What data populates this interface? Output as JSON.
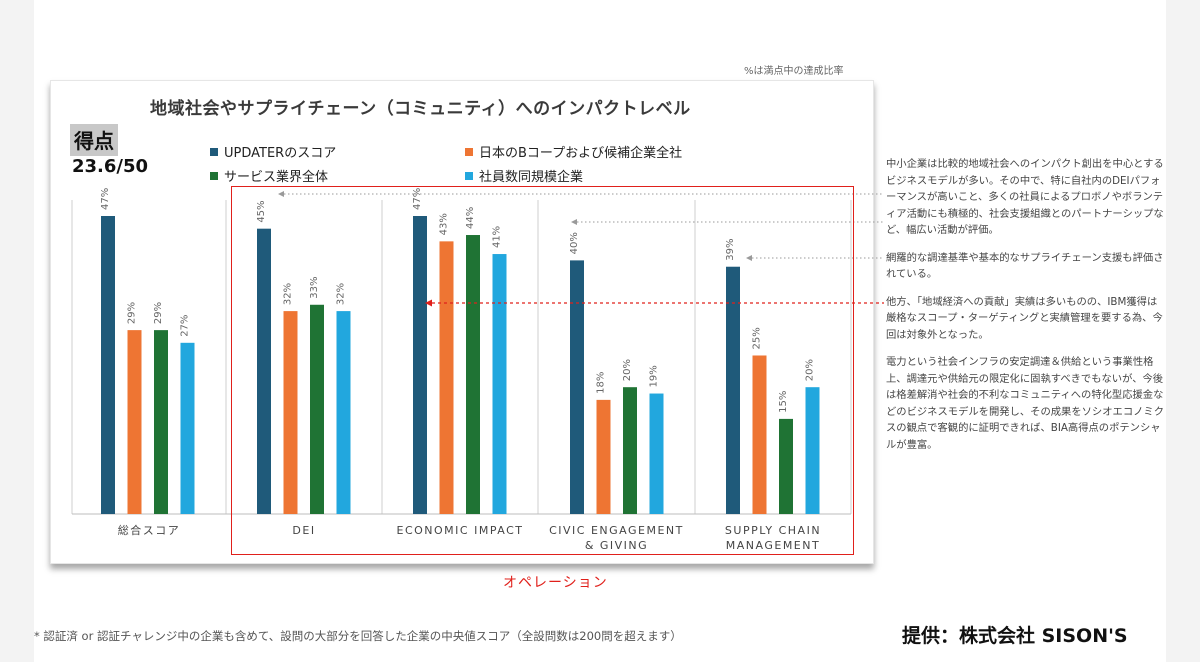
{
  "top_note": "%は満点中の達成比率",
  "score": {
    "label": "得点",
    "value": "23.6/50"
  },
  "highlight_label": "オペレーション",
  "colors": {
    "UPDATER": "#1f5a7a",
    "bcorp": "#ee7533",
    "service": "#1f7334",
    "size": "#22a7de",
    "highlight": "#e0201b"
  },
  "chart_data": {
    "type": "bar",
    "title": "地域社会やサプライチェーン（コミュニティ）へのインパクトレベル",
    "categories": [
      "総合スコア",
      "DEI",
      "ECONOMIC IMPACT",
      "CIVIC ENGAGEMENT\n& GIVING",
      "SUPPLY CHAIN\nMANAGEMENT"
    ],
    "series": [
      {
        "name": "UPDATERのスコア",
        "color_key": "UPDATER",
        "values": [
          47,
          45,
          47,
          40,
          39
        ]
      },
      {
        "name": "日本のBコープおよび候補企業全社",
        "color_key": "bcorp",
        "values": [
          29,
          32,
          43,
          18,
          25
        ]
      },
      {
        "name": "サービス業界全体",
        "color_key": "service",
        "values": [
          29,
          33,
          44,
          20,
          15
        ]
      },
      {
        "name": "社員数同規模企業",
        "color_key": "size",
        "values": [
          27,
          32,
          41,
          19,
          20
        ]
      }
    ],
    "ylim": [
      0,
      50
    ],
    "value_suffix": "%",
    "grid": false,
    "legend_position": "top"
  },
  "notes": [
    "中小企業は比較的地域社会へのインパクト創出を中心とするビジネスモデルが多い。その中で、特に自社内のDEIパフォーマンスが高いこと、多くの社員によるプロボノやボランティア活動にも積極的、社会支援組織とのパートナーシップなど、幅広い活動が評価。",
    "網羅的な調達基準や基本的なサプライチェーン支援も評価されている。",
    "他方、「地域経済への貢献」実績は多いものの、IBM獲得は厳格なスコープ・ターゲティングと実績管理を要する為、今回は対象外となった。",
    "電力という社会インフラの安定調達＆供給という事業性格上、調達元や供給元の限定化に固執すべきでもないが、今後は格差解消や社会的不利なコミュニティへの特化型応援金などのビジネスモデルを開発し、その成果をソシオエコノミクスの観点で客観的に証明できれば、BIA高得点のポテンシャルが豊富。"
  ],
  "footnote": "* 認証済 or 認証チャレンジ中の企業も含めて、設問の大部分を回答した企業の中央値スコア（全設問数は200問を超えます）",
  "credit": "提供：株式会社 SISON'S"
}
